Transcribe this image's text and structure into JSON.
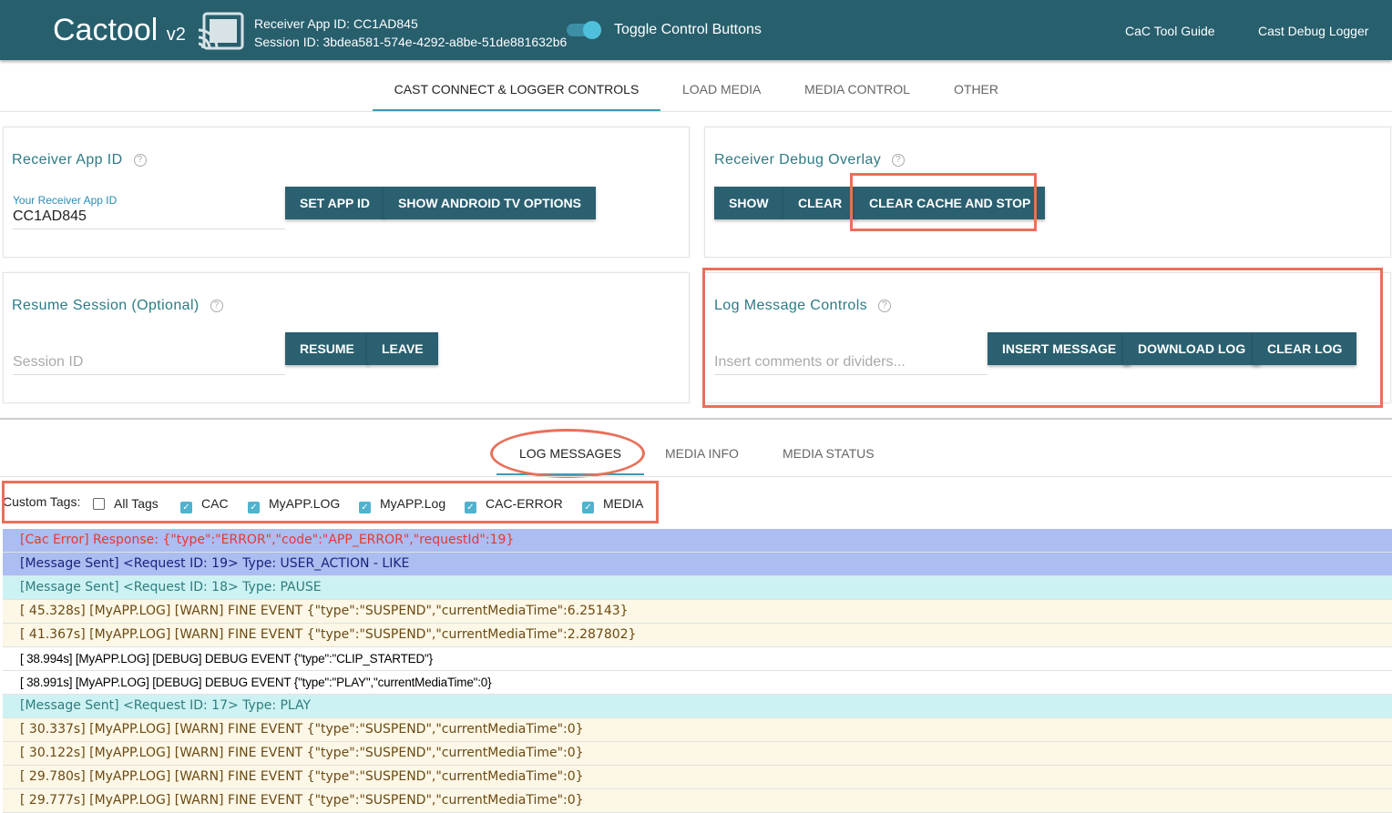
{
  "header": {
    "logo": "Cactool",
    "version": "v2",
    "receiver_app_id": "Receiver App ID: CC1AD845",
    "session_id": "Session ID: 3bdea581-574e-4292-a8be-51de881632b6",
    "toggle_label": "Toggle Control Buttons",
    "toggle_on": true,
    "links": [
      "CaC Tool Guide",
      "Cast Debug Logger"
    ]
  },
  "tabs": [
    "CAST CONNECT & LOGGER CONTROLS",
    "LOAD MEDIA",
    "MEDIA CONTROL",
    "OTHER"
  ],
  "receiver_app": {
    "title": "Receiver App ID",
    "field_label": "Your Receiver App ID",
    "field_value": "CC1AD845",
    "set_btn": "SET APP ID",
    "android_btn": "SHOW ANDROID TV OPTIONS"
  },
  "debug_overlay": {
    "title": "Receiver Debug Overlay",
    "show": "SHOW",
    "clear": "CLEAR",
    "clear_cache": "CLEAR CACHE AND STOP"
  },
  "resume": {
    "title": "Resume Session (Optional)",
    "placeholder": "Session ID",
    "resume": "RESUME",
    "leave": "LEAVE"
  },
  "log_controls": {
    "title": "Log Message Controls",
    "placeholder": "Insert comments or dividers...",
    "insert": "INSERT MESSAGE",
    "download": "DOWNLOAD LOG",
    "clear": "CLEAR LOG"
  },
  "log_tabs": [
    "LOG MESSAGES",
    "MEDIA INFO",
    "MEDIA STATUS"
  ],
  "custom_tags": {
    "label": "Custom Tags:",
    "tags": [
      {
        "name": "All Tags",
        "checked": false
      },
      {
        "name": "CAC",
        "checked": true
      },
      {
        "name": "MyAPP.LOG",
        "checked": true
      },
      {
        "name": "MyAPP.Log",
        "checked": true
      },
      {
        "name": "CAC-ERROR",
        "checked": true
      },
      {
        "name": "MEDIA",
        "checked": true
      }
    ]
  },
  "colors": {
    "header": "#275f6d",
    "button": "#2a6070",
    "accent": "#3a9bb5",
    "highlight": "#e8705a"
  },
  "log": [
    {
      "type": "error",
      "text": "[Cac Error] Response: {\"type\":\"ERROR\",\"code\":\"APP_ERROR\",\"requestId\":19}"
    },
    {
      "type": "sent1",
      "text": "[Message Sent] <Request ID: 19> Type: USER_ACTION - LIKE"
    },
    {
      "type": "sent2",
      "text": "[Message Sent] <Request ID: 18> Type: PAUSE"
    },
    {
      "type": "warn",
      "text": "[ 45.328s] [MyAPP.LOG] [WARN] FINE EVENT {\"type\":\"SUSPEND\",\"currentMediaTime\":6.25143}"
    },
    {
      "type": "warn",
      "text": "[ 41.367s] [MyAPP.LOG] [WARN] FINE EVENT {\"type\":\"SUSPEND\",\"currentMediaTime\":2.287802}"
    },
    {
      "type": "debug",
      "text": "[ 38.994s] [MyAPP.LOG] [DEBUG] DEBUG EVENT {\"type\":\"CLIP_STARTED\"}"
    },
    {
      "type": "debug",
      "text": "[ 38.991s] [MyAPP.LOG] [DEBUG] DEBUG EVENT {\"type\":\"PLAY\",\"currentMediaTime\":0}"
    },
    {
      "type": "sent2",
      "text": "[Message Sent] <Request ID: 17> Type: PLAY"
    },
    {
      "type": "warn",
      "text": "[ 30.337s] [MyAPP.LOG] [WARN] FINE EVENT {\"type\":\"SUSPEND\",\"currentMediaTime\":0}"
    },
    {
      "type": "warn",
      "text": "[ 30.122s] [MyAPP.LOG] [WARN] FINE EVENT {\"type\":\"SUSPEND\",\"currentMediaTime\":0}"
    },
    {
      "type": "warn",
      "text": "[ 29.780s] [MyAPP.LOG] [WARN] FINE EVENT {\"type\":\"SUSPEND\",\"currentMediaTime\":0}"
    },
    {
      "type": "warn",
      "text": "[ 29.777s] [MyAPP.LOG] [WARN] FINE EVENT {\"type\":\"SUSPEND\",\"currentMediaTime\":0}"
    }
  ]
}
